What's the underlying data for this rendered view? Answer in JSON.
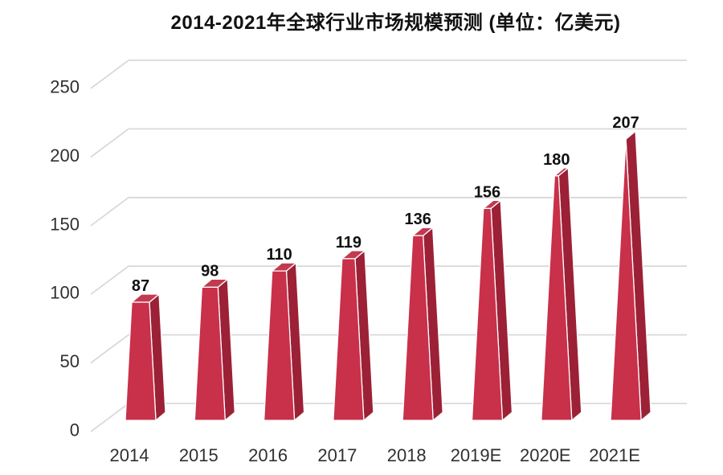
{
  "chart_data": {
    "type": "bar",
    "variant": "3d-pyramid-columns",
    "title": "2014-2021年全球行业市场规模预测 (单位：亿美元)",
    "categories": [
      "2014",
      "2015",
      "2016",
      "2017",
      "2018",
      "2019E",
      "2020E",
      "2021E"
    ],
    "values": [
      87,
      98,
      110,
      119,
      136,
      156,
      180,
      207
    ],
    "value_labels_shown": true,
    "xlabel": "",
    "ylabel": "",
    "ylim": [
      0,
      250
    ],
    "ytick_interval": 50,
    "yticks": [
      0,
      50,
      100,
      150,
      200,
      250
    ],
    "legend_position": "none",
    "grid": "horizontal-3d",
    "colors": {
      "background": "#FFFFFF",
      "bar_front": "#C9304A",
      "bar_side": "#9C2136",
      "bar_top": "#C13A50",
      "bar_edge": "#FFFFFF",
      "gridline": "#D9D9D9",
      "title_text": "#111111",
      "axis_text": "#303030",
      "value_text": "#111111"
    }
  }
}
